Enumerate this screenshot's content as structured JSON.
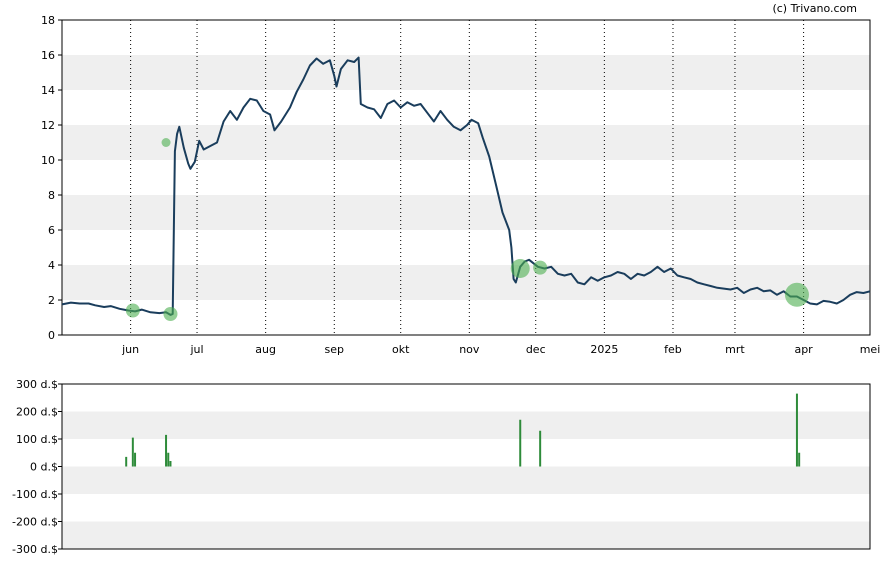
{
  "credit": "(c) Trivano.com",
  "colors": {
    "line": "#1a3d5c",
    "band": "#efefef",
    "marker": "#4caf50",
    "bar": "#2e8b3a",
    "axis": "#000000",
    "grid": "#000000"
  },
  "chart_data": [
    {
      "type": "line",
      "title": "",
      "xlabel": "",
      "ylabel": "",
      "ylim": [
        0,
        18
      ],
      "yticks": [
        "0",
        "2",
        "4",
        "6",
        "8",
        "10",
        "12",
        "14",
        "16",
        "18"
      ],
      "xticks": [
        {
          "label": "jun",
          "date": "2024-06-01"
        },
        {
          "label": "jul",
          "date": "2024-07-01"
        },
        {
          "label": "aug",
          "date": "2024-08-01"
        },
        {
          "label": "sep",
          "date": "2024-09-01"
        },
        {
          "label": "okt",
          "date": "2024-10-01"
        },
        {
          "label": "nov",
          "date": "2024-11-01"
        },
        {
          "label": "dec",
          "date": "2024-12-01"
        },
        {
          "label": "2025",
          "date": "2025-01-01"
        },
        {
          "label": "feb",
          "date": "2025-02-01"
        },
        {
          "label": "mrt",
          "date": "2025-03-01"
        },
        {
          "label": "apr",
          "date": "2025-04-01"
        },
        {
          "label": "mei",
          "date": "2025-05-01"
        }
      ],
      "xlim": [
        "2024-05-01",
        "2025-05-01"
      ],
      "grid": {
        "vertical": "dotted",
        "horizontal_bands": true
      },
      "series": [
        {
          "points": [
            [
              "2024-05-01",
              1.75
            ],
            [
              "2024-05-05",
              1.85
            ],
            [
              "2024-05-09",
              1.8
            ],
            [
              "2024-05-13",
              1.8
            ],
            [
              "2024-05-16",
              1.7
            ],
            [
              "2024-05-20",
              1.6
            ],
            [
              "2024-05-23",
              1.65
            ],
            [
              "2024-05-27",
              1.5
            ],
            [
              "2024-05-31",
              1.4
            ],
            [
              "2024-06-03",
              1.35
            ],
            [
              "2024-06-06",
              1.45
            ],
            [
              "2024-06-10",
              1.3
            ],
            [
              "2024-06-14",
              1.25
            ],
            [
              "2024-06-17",
              1.3
            ],
            [
              "2024-06-19",
              1.15
            ],
            [
              "2024-06-20",
              1.2
            ],
            [
              "2024-06-21",
              10.5
            ],
            [
              "2024-06-22",
              11.5
            ],
            [
              "2024-06-23",
              11.9
            ],
            [
              "2024-06-25",
              10.7
            ],
            [
              "2024-06-27",
              9.8
            ],
            [
              "2024-06-28",
              9.5
            ],
            [
              "2024-06-30",
              9.9
            ],
            [
              "2024-07-02",
              11.1
            ],
            [
              "2024-07-04",
              10.6
            ],
            [
              "2024-07-07",
              10.8
            ],
            [
              "2024-07-10",
              11.0
            ],
            [
              "2024-07-13",
              12.2
            ],
            [
              "2024-07-16",
              12.8
            ],
            [
              "2024-07-19",
              12.3
            ],
            [
              "2024-07-22",
              13.0
            ],
            [
              "2024-07-25",
              13.5
            ],
            [
              "2024-07-28",
              13.4
            ],
            [
              "2024-07-31",
              12.8
            ],
            [
              "2024-08-03",
              12.6
            ],
            [
              "2024-08-05",
              11.7
            ],
            [
              "2024-08-08",
              12.2
            ],
            [
              "2024-08-12",
              13.0
            ],
            [
              "2024-08-15",
              13.9
            ],
            [
              "2024-08-18",
              14.6
            ],
            [
              "2024-08-21",
              15.4
            ],
            [
              "2024-08-24",
              15.8
            ],
            [
              "2024-08-27",
              15.5
            ],
            [
              "2024-08-30",
              15.7
            ],
            [
              "2024-09-01",
              14.8
            ],
            [
              "2024-09-02",
              14.2
            ],
            [
              "2024-09-04",
              15.2
            ],
            [
              "2024-09-07",
              15.7
            ],
            [
              "2024-09-10",
              15.6
            ],
            [
              "2024-09-12",
              15.85
            ],
            [
              "2024-09-13",
              13.2
            ],
            [
              "2024-09-16",
              13.0
            ],
            [
              "2024-09-19",
              12.9
            ],
            [
              "2024-09-22",
              12.4
            ],
            [
              "2024-09-25",
              13.2
            ],
            [
              "2024-09-28",
              13.4
            ],
            [
              "2024-10-01",
              13.0
            ],
            [
              "2024-10-04",
              13.3
            ],
            [
              "2024-10-07",
              13.1
            ],
            [
              "2024-10-10",
              13.2
            ],
            [
              "2024-10-13",
              12.7
            ],
            [
              "2024-10-16",
              12.2
            ],
            [
              "2024-10-19",
              12.8
            ],
            [
              "2024-10-22",
              12.3
            ],
            [
              "2024-10-25",
              11.9
            ],
            [
              "2024-10-28",
              11.7
            ],
            [
              "2024-10-31",
              12.0
            ],
            [
              "2024-11-02",
              12.3
            ],
            [
              "2024-11-05",
              12.1
            ],
            [
              "2024-11-07",
              11.3
            ],
            [
              "2024-11-10",
              10.2
            ],
            [
              "2024-11-13",
              8.6
            ],
            [
              "2024-11-16",
              7.0
            ],
            [
              "2024-11-19",
              6.0
            ],
            [
              "2024-11-20",
              5.0
            ],
            [
              "2024-11-21",
              3.2
            ],
            [
              "2024-11-22",
              3.0
            ],
            [
              "2024-11-24",
              3.9
            ],
            [
              "2024-11-26",
              4.2
            ],
            [
              "2024-11-28",
              4.3
            ],
            [
              "2024-11-30",
              4.1
            ],
            [
              "2024-12-02",
              3.9
            ],
            [
              "2024-12-05",
              3.8
            ],
            [
              "2024-12-08",
              3.9
            ],
            [
              "2024-12-11",
              3.5
            ],
            [
              "2024-12-14",
              3.4
            ],
            [
              "2024-12-17",
              3.5
            ],
            [
              "2024-12-20",
              3.0
            ],
            [
              "2024-12-23",
              2.9
            ],
            [
              "2024-12-26",
              3.3
            ],
            [
              "2024-12-29",
              3.1
            ],
            [
              "2025-01-01",
              3.3
            ],
            [
              "2025-01-04",
              3.4
            ],
            [
              "2025-01-07",
              3.6
            ],
            [
              "2025-01-10",
              3.5
            ],
            [
              "2025-01-13",
              3.2
            ],
            [
              "2025-01-16",
              3.5
            ],
            [
              "2025-01-19",
              3.4
            ],
            [
              "2025-01-22",
              3.6
            ],
            [
              "2025-01-25",
              3.9
            ],
            [
              "2025-01-28",
              3.6
            ],
            [
              "2025-01-31",
              3.8
            ],
            [
              "2025-02-03",
              3.4
            ],
            [
              "2025-02-06",
              3.3
            ],
            [
              "2025-02-09",
              3.2
            ],
            [
              "2025-02-12",
              3.0
            ],
            [
              "2025-02-15",
              2.9
            ],
            [
              "2025-02-18",
              2.8
            ],
            [
              "2025-02-21",
              2.7
            ],
            [
              "2025-02-24",
              2.65
            ],
            [
              "2025-02-27",
              2.6
            ],
            [
              "2025-03-02",
              2.7
            ],
            [
              "2025-03-05",
              2.4
            ],
            [
              "2025-03-08",
              2.6
            ],
            [
              "2025-03-11",
              2.7
            ],
            [
              "2025-03-14",
              2.5
            ],
            [
              "2025-03-17",
              2.55
            ],
            [
              "2025-03-20",
              2.3
            ],
            [
              "2025-03-23",
              2.5
            ],
            [
              "2025-03-26",
              2.2
            ],
            [
              "2025-03-29",
              2.2
            ],
            [
              "2025-04-01",
              2.0
            ],
            [
              "2025-04-04",
              1.8
            ],
            [
              "2025-04-07",
              1.75
            ],
            [
              "2025-04-10",
              1.95
            ],
            [
              "2025-04-13",
              1.9
            ],
            [
              "2025-04-16",
              1.8
            ],
            [
              "2025-04-19",
              2.0
            ],
            [
              "2025-04-22",
              2.3
            ],
            [
              "2025-04-25",
              2.45
            ],
            [
              "2025-04-28",
              2.4
            ],
            [
              "2025-05-01",
              2.5
            ]
          ]
        }
      ],
      "markers": [
        {
          "date": "2024-06-02",
          "value": 1.4,
          "size": 2
        },
        {
          "date": "2024-06-17",
          "value": 11.0,
          "size": 1
        },
        {
          "date": "2024-06-19",
          "value": 1.2,
          "size": 2
        },
        {
          "date": "2024-11-24",
          "value": 3.8,
          "size": 3
        },
        {
          "date": "2024-12-03",
          "value": 3.85,
          "size": 2
        },
        {
          "date": "2025-03-29",
          "value": 2.3,
          "size": 4
        }
      ]
    },
    {
      "type": "bar",
      "title": "",
      "xlabel": "",
      "ylabel": "",
      "ylim": [
        -300,
        300
      ],
      "yticks": [
        "300 d.$",
        "200 d.$",
        "100 d.$",
        "0 d.$",
        "-100 d.$",
        "-200 d.$",
        "-300 d.$"
      ],
      "bars": [
        {
          "date": "2024-05-30",
          "value": 35
        },
        {
          "date": "2024-06-02",
          "value": 105
        },
        {
          "date": "2024-06-03",
          "value": 50
        },
        {
          "date": "2024-06-17",
          "value": 115
        },
        {
          "date": "2024-06-18",
          "value": 50
        },
        {
          "date": "2024-06-19",
          "value": 20
        },
        {
          "date": "2024-11-24",
          "value": 170
        },
        {
          "date": "2024-12-03",
          "value": 130
        },
        {
          "date": "2025-03-29",
          "value": 265
        },
        {
          "date": "2025-03-30",
          "value": 50
        }
      ]
    }
  ]
}
